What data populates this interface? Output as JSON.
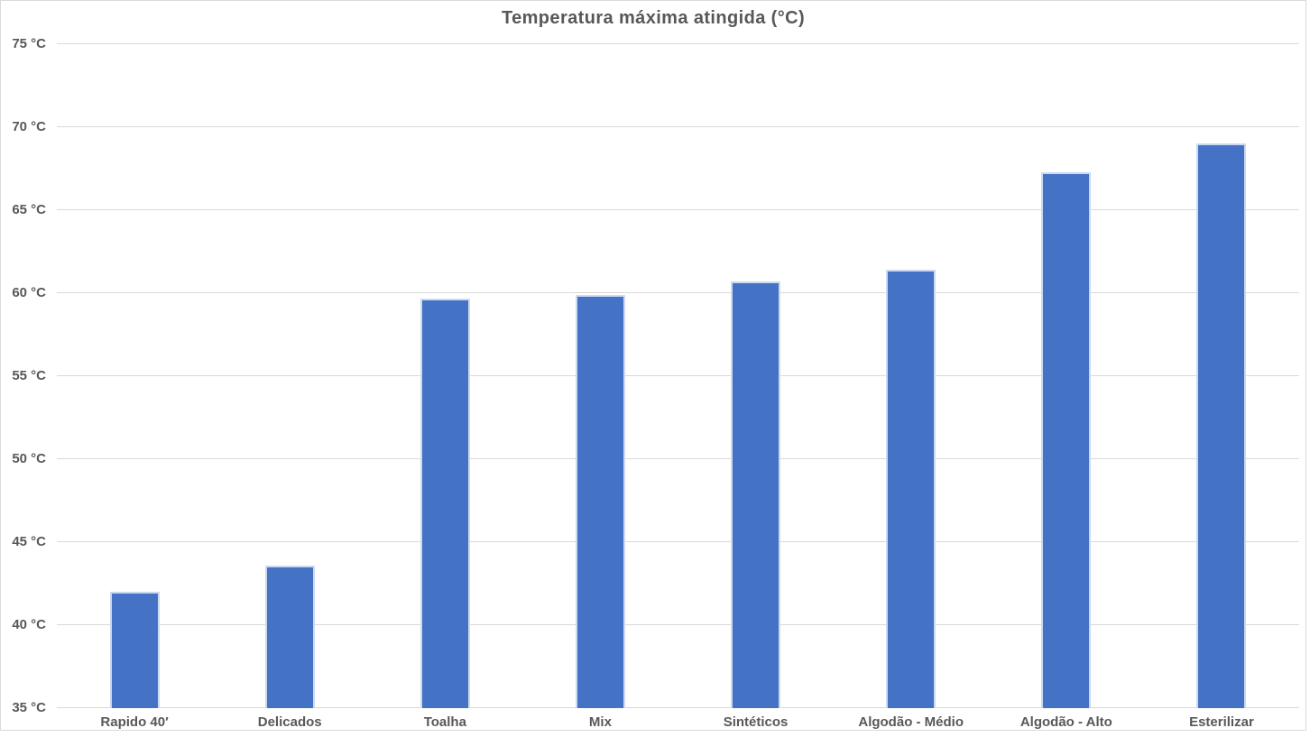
{
  "chart_data": {
    "type": "bar",
    "title": "Temperatura máxima atingida (°C)",
    "categories": [
      "Rapido 40′",
      "Delicados",
      "Toalha",
      "Mix",
      "Sintéticos",
      "Algodão - Médio",
      "Algodão - Alto",
      "Esterilizar"
    ],
    "values": [
      42.0,
      43.6,
      59.7,
      59.9,
      60.7,
      61.4,
      67.3,
      69.0
    ],
    "unit": "°C",
    "xlabel": "",
    "ylabel": "",
    "ylim": [
      35,
      75
    ],
    "ytick_step": 5,
    "ytick_labels": [
      "35 °C",
      "40 °C",
      "45 °C",
      "50 °C",
      "55 °C",
      "60 °C",
      "65 °C",
      "70 °C",
      "75 °C"
    ],
    "grid": true,
    "legend": "none",
    "colors": {
      "bar_fill": "#4472c4",
      "bar_border": "#ccd9f0",
      "gridline": "#d9d9d9",
      "text": "#58585a",
      "background": "#ffffff",
      "frame_border": "#d9d9d9"
    }
  }
}
